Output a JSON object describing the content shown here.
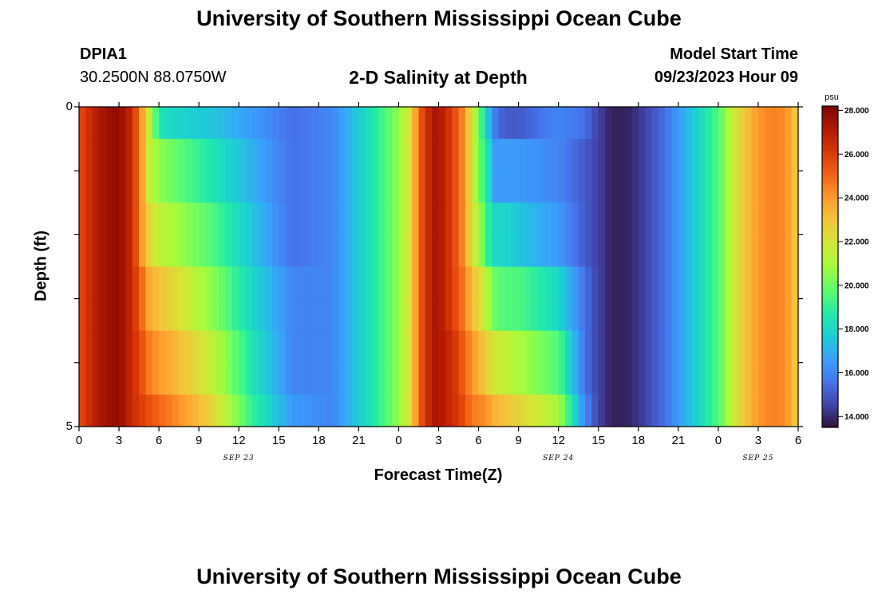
{
  "page": {
    "title_top": "University of Southern Mississippi Ocean Cube",
    "title_bottom": "University of Southern Mississippi Ocean Cube",
    "station_id": "DPIA1",
    "station_coords": "30.2500N  88.0750W",
    "model_start_label": "Model Start Time",
    "model_start_value": "09/23/2023 Hour 09",
    "chart_title": "2-D Salinity at Depth"
  },
  "colors": {
    "colormap": [
      "#30123b",
      "#4145ab",
      "#4675ed",
      "#39a2fc",
      "#1bcfd4",
      "#24eca6",
      "#61fc6c",
      "#a4fc3b",
      "#d1e834",
      "#f3c63a",
      "#fe9b2d",
      "#f36315",
      "#d93806",
      "#b11901",
      "#7a0402"
    ]
  },
  "chart_data": {
    "type": "heatmap",
    "title": "2-D Salinity at Depth",
    "xlabel": "Forecast Time(Z)",
    "ylabel": "Depth (ft)",
    "x_ticks": [
      "0",
      "3",
      "6",
      "9",
      "12",
      "15",
      "18",
      "21",
      "0",
      "3",
      "6",
      "9",
      "12",
      "15",
      "18",
      "21",
      "0",
      "3",
      "6"
    ],
    "x_date_labels": [
      {
        "label": "SEP 23",
        "hour": 12
      },
      {
        "label": "SEP 24",
        "hour": 36
      },
      {
        "label": "SEP 25",
        "hour": 60
      }
    ],
    "x_range_hours": [
      0,
      54
    ],
    "y_ticks": [
      "0",
      "5"
    ],
    "y_range_ft": [
      0,
      5
    ],
    "depth_levels_ft": [
      0.25,
      0.75,
      1.25,
      1.75,
      2.25,
      2.75,
      3.25,
      3.75,
      4.25,
      4.75
    ],
    "colorbar": {
      "unit": "psu",
      "min": 13.5,
      "max": 28.2,
      "tick_labels": [
        "28.000",
        "26.000",
        "24.000",
        "22.000",
        "20.000",
        "18.000",
        "16.000",
        "14.000"
      ]
    },
    "profiles": [
      {
        "hours": [
          0,
          1,
          2,
          3,
          4,
          4.7,
          5.3,
          6,
          7,
          10,
          13,
          16,
          19,
          22,
          24,
          25,
          25.5,
          26.5,
          27,
          28,
          29,
          29.5,
          30,
          30.7,
          31,
          32,
          33,
          36,
          38,
          39,
          40,
          41,
          42,
          44,
          46,
          48,
          49,
          50,
          51,
          52,
          53,
          54
        ],
        "values": [
          25.5,
          26.8,
          27.5,
          27.8,
          26.5,
          24,
          21.5,
          18.5,
          18,
          17.5,
          16.5,
          15.5,
          16,
          18.5,
          20.5,
          22.5,
          25,
          27.2,
          27.3,
          26,
          24,
          22,
          20,
          17.5,
          16,
          15,
          15,
          16,
          15.5,
          14.5,
          13.8,
          13.8,
          14.2,
          15.5,
          17.5,
          19.5,
          21.5,
          23,
          24,
          24.5,
          24.3,
          22.5
        ]
      },
      {
        "hours": [
          0,
          1,
          2,
          3,
          4,
          4.7,
          5.3,
          6,
          7,
          10,
          13,
          16,
          19,
          22,
          24,
          25,
          25.5,
          26.5,
          27,
          28,
          29,
          29.5,
          30,
          30.7,
          31,
          32,
          33,
          36,
          38,
          39,
          40,
          41,
          42,
          44,
          46,
          48,
          49,
          50,
          51,
          52,
          53,
          54
        ],
        "values": [
          25.5,
          26.8,
          27.5,
          27.8,
          26.5,
          24,
          21.5,
          20.5,
          20,
          18.5,
          17,
          15.5,
          16,
          18.5,
          20.5,
          22.5,
          25,
          27.2,
          27.3,
          26,
          24,
          22,
          20,
          18.5,
          16.5,
          16.5,
          16.5,
          16,
          15,
          14.5,
          13.8,
          13.8,
          14.2,
          15.5,
          17.5,
          19.5,
          21.5,
          23,
          24,
          24.5,
          24.3,
          22.5
        ]
      },
      {
        "hours": [
          0,
          1,
          2,
          3,
          4,
          4.7,
          5.3,
          6,
          7,
          10,
          13,
          16,
          19,
          22,
          24,
          25,
          25.5,
          26.5,
          27,
          28,
          29,
          29.5,
          30,
          30.7,
          31,
          32,
          33,
          36,
          38,
          39,
          40,
          41,
          42,
          44,
          46,
          48,
          49,
          50,
          51,
          52,
          53,
          54
        ],
        "values": [
          25.5,
          26.8,
          27.5,
          27.8,
          26.5,
          24,
          21.5,
          20.5,
          20,
          18.5,
          17,
          15.5,
          16,
          18.5,
          20.5,
          22.5,
          25,
          27.2,
          27.3,
          26,
          24,
          22,
          20,
          18.5,
          16.5,
          16.5,
          16.5,
          16,
          15,
          14.5,
          13.8,
          13.8,
          14.2,
          15.5,
          17.5,
          19.5,
          21.5,
          23,
          24,
          24.5,
          24.3,
          22.5
        ]
      },
      {
        "hours": [
          0,
          1,
          2,
          3,
          4,
          4.7,
          5.3,
          6,
          7,
          10,
          13,
          16,
          19,
          22,
          24,
          25,
          25.5,
          26.5,
          27,
          28,
          29,
          29.5,
          30,
          30.7,
          31,
          32,
          33,
          36,
          38,
          39,
          40,
          41,
          42,
          44,
          46,
          48,
          49,
          50,
          51,
          52,
          53,
          54
        ],
        "values": [
          25.5,
          26.8,
          27.5,
          27.8,
          26.5,
          24,
          22.5,
          21.5,
          21,
          19.5,
          17.5,
          15.5,
          16,
          18.5,
          20.5,
          22.5,
          25,
          27.2,
          27.3,
          26,
          24,
          22,
          21,
          19,
          18,
          18,
          17.5,
          16.5,
          15,
          14.5,
          13.8,
          13.8,
          14.2,
          15.5,
          17.5,
          19.5,
          21.5,
          23,
          24,
          24.5,
          24.3,
          22.5
        ]
      },
      {
        "hours": [
          0,
          1,
          2,
          3,
          4,
          4.7,
          5.3,
          6,
          7,
          10,
          13,
          16,
          19,
          22,
          24,
          25,
          25.5,
          26.5,
          27,
          28,
          29,
          29.5,
          30,
          30.7,
          31,
          32,
          33,
          36,
          38,
          39,
          40,
          41,
          42,
          44,
          46,
          48,
          49,
          50,
          51,
          52,
          53,
          54
        ],
        "values": [
          25.5,
          26.8,
          27.5,
          27.8,
          26.5,
          24,
          22.5,
          21.5,
          21,
          19.5,
          17.5,
          15.5,
          16,
          18.5,
          20.5,
          22.5,
          25,
          27.2,
          27.3,
          26,
          24,
          22,
          21,
          19,
          18,
          18,
          17.5,
          16.5,
          15,
          14.5,
          13.8,
          13.8,
          14.2,
          15.5,
          17.5,
          19.5,
          21.5,
          23,
          24,
          24.5,
          24.3,
          22.5
        ]
      },
      {
        "hours": [
          0,
          1,
          2,
          3,
          4,
          4.7,
          5.3,
          6,
          7,
          10,
          13,
          16,
          19,
          22,
          24,
          25,
          25.5,
          26.5,
          27,
          28,
          29,
          29.5,
          30,
          30.7,
          31,
          32,
          33,
          36,
          38,
          39,
          40,
          41,
          42,
          44,
          46,
          48,
          49,
          50,
          51,
          52,
          53,
          54
        ],
        "values": [
          25.5,
          26.8,
          27.5,
          27.8,
          26.5,
          25,
          23.5,
          23,
          22.5,
          20.5,
          18,
          16,
          16,
          18.5,
          20.5,
          22.5,
          25,
          27.2,
          27.3,
          26,
          24.5,
          23,
          22.5,
          21,
          20,
          19.5,
          19.5,
          18,
          15.5,
          14.5,
          13.8,
          13.8,
          14.2,
          15.5,
          17.5,
          19.5,
          21.5,
          23,
          24,
          24.5,
          24.3,
          22.5
        ]
      },
      {
        "hours": [
          0,
          1,
          2,
          3,
          4,
          4.7,
          5.3,
          6,
          7,
          10,
          13,
          16,
          19,
          22,
          24,
          25,
          25.5,
          26.5,
          27,
          28,
          29,
          29.5,
          30,
          30.7,
          31,
          32,
          33,
          36,
          38,
          39,
          40,
          41,
          42,
          44,
          46,
          48,
          49,
          50,
          51,
          52,
          53,
          54
        ],
        "values": [
          25.5,
          26.8,
          27.5,
          27.8,
          26.5,
          25,
          23.5,
          23,
          22.5,
          20.5,
          18,
          16,
          16,
          18.5,
          20.5,
          22.5,
          25,
          27.2,
          27.3,
          26,
          24.5,
          23,
          22.5,
          21,
          20,
          19.5,
          19.5,
          18,
          15.5,
          14.5,
          13.8,
          13.8,
          14.2,
          15.5,
          17.5,
          19.5,
          21.5,
          23,
          24,
          24.5,
          24.3,
          22.5
        ]
      },
      {
        "hours": [
          0,
          1,
          2,
          3,
          4,
          4.7,
          5.3,
          6,
          7,
          10,
          13,
          16,
          19,
          22,
          24,
          25,
          25.5,
          26.5,
          27,
          28,
          29,
          29.5,
          30,
          30.7,
          31,
          32,
          33,
          36,
          38,
          39,
          40,
          41,
          42,
          44,
          46,
          48,
          49,
          50,
          51,
          52,
          53,
          54
        ],
        "values": [
          25.5,
          26.8,
          27.5,
          27.8,
          26.5,
          25.5,
          24.5,
          24,
          23.5,
          21.5,
          18.5,
          16,
          16,
          18.5,
          20.5,
          22.5,
          25,
          27.2,
          27.3,
          26.5,
          25,
          24,
          23.5,
          22.5,
          22,
          21.5,
          21,
          19.5,
          15.5,
          14.5,
          13.8,
          13.8,
          14.2,
          15.5,
          17.5,
          19.5,
          21.5,
          23,
          24,
          24.5,
          24.3,
          22.5
        ]
      },
      {
        "hours": [
          0,
          1,
          2,
          3,
          4,
          4.7,
          5.3,
          6,
          7,
          10,
          13,
          16,
          19,
          22,
          24,
          25,
          25.5,
          26.5,
          27,
          28,
          29,
          29.5,
          30,
          30.7,
          31,
          32,
          33,
          36,
          38,
          39,
          40,
          41,
          42,
          44,
          46,
          48,
          49,
          50,
          51,
          52,
          53,
          54
        ],
        "values": [
          25.5,
          26.8,
          27.5,
          27.8,
          26.5,
          25.5,
          24.5,
          24,
          23.5,
          21.5,
          18.5,
          16,
          16,
          18.5,
          20.5,
          22.5,
          25,
          27.2,
          27.3,
          26.5,
          25,
          24,
          23.5,
          22.5,
          22,
          21.5,
          21,
          19.5,
          15.5,
          14.5,
          13.8,
          13.8,
          14.2,
          15.5,
          17.5,
          19.5,
          21.5,
          23,
          24,
          24.5,
          24.3,
          22.5
        ]
      },
      {
        "hours": [
          0,
          1,
          2,
          3,
          4,
          4.7,
          5.3,
          6,
          7,
          10,
          13,
          16,
          19,
          22,
          24,
          25,
          25.5,
          26.5,
          27,
          28,
          29,
          29.5,
          30,
          30.7,
          31,
          32,
          33,
          36,
          38,
          39,
          40,
          41,
          42,
          44,
          46,
          48,
          49,
          50,
          51,
          52,
          53,
          54
        ],
        "values": [
          25.5,
          26.8,
          27.5,
          27.8,
          26.5,
          26,
          25.5,
          25,
          24.5,
          22.5,
          19,
          16.5,
          16,
          18.5,
          20.5,
          22.5,
          25,
          27.2,
          27.3,
          26.5,
          25.5,
          24.5,
          24.5,
          24,
          23.5,
          23,
          22.5,
          21,
          16,
          14.5,
          13.8,
          13.8,
          14.2,
          15.5,
          17.5,
          19.5,
          21.5,
          23,
          24,
          24.5,
          24.3,
          22.5
        ]
      }
    ]
  }
}
